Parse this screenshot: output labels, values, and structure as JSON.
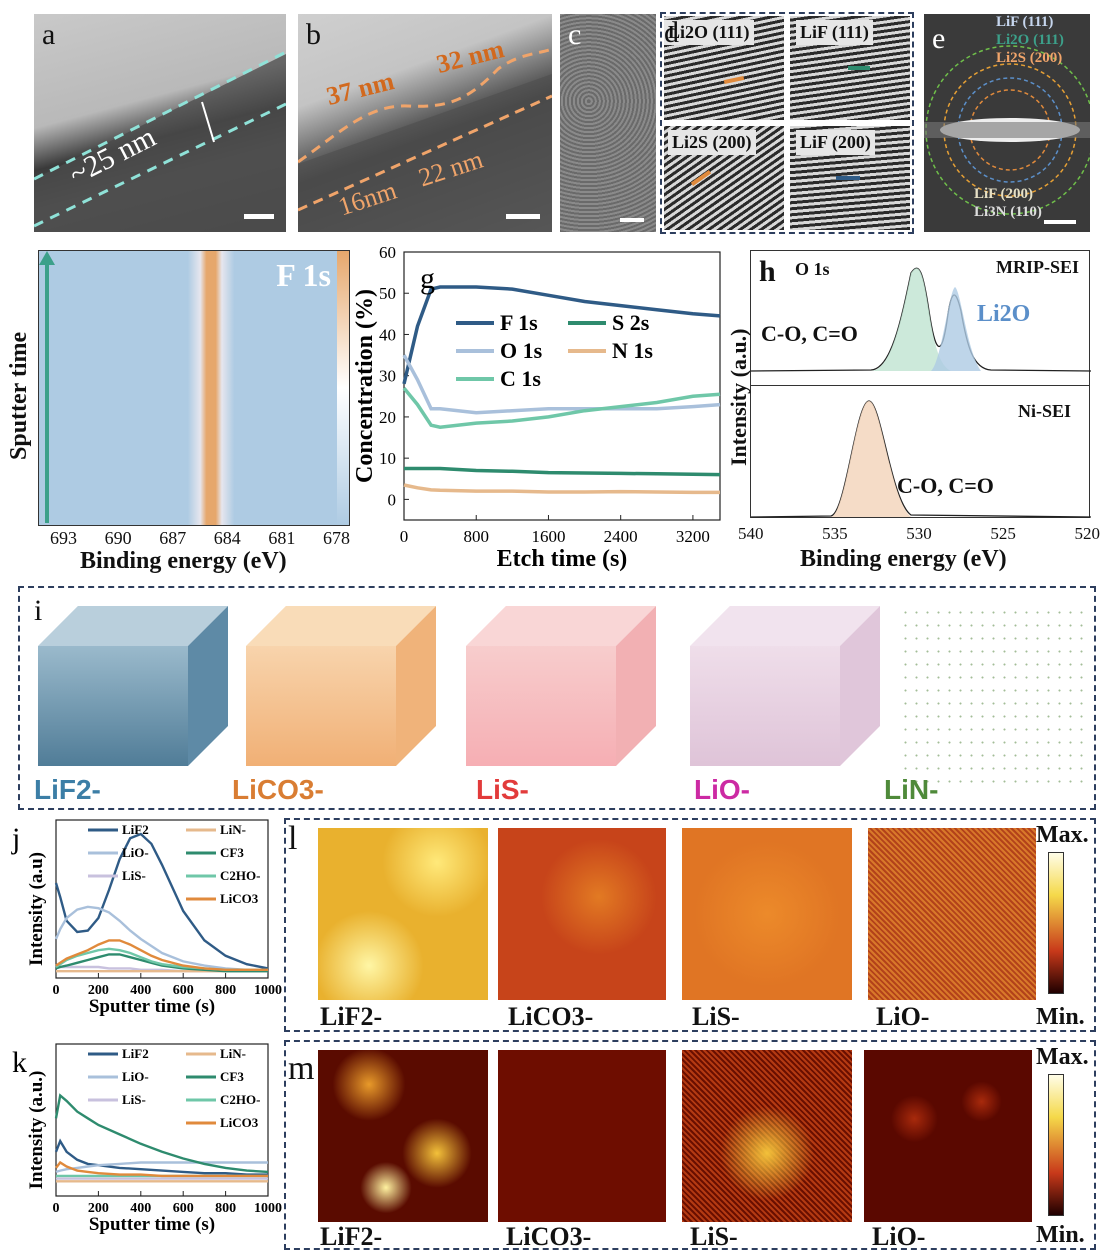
{
  "panels": {
    "a": {
      "label": "a",
      "thickness": "~25 nm"
    },
    "b": {
      "label": "b",
      "m1": "37 nm",
      "m2": "32 nm",
      "m3": "16nm",
      "m4": "22 nm"
    },
    "c": {
      "label": "c"
    },
    "d": {
      "label": "d",
      "tiles": [
        "Li2O (111)",
        "LiF (111)",
        "Li2S (200)",
        "LiF (200)"
      ]
    },
    "e": {
      "label": "e",
      "rings_top": [
        "LiF (111)",
        "Li2O (111)",
        "Li2S (200)"
      ],
      "rings_bottom": [
        "LiF (200)",
        "Li3N (110)"
      ]
    },
    "f": {
      "title": "F 1s",
      "ylabel": "Sputter time",
      "xlabel": "Binding energy (eV)",
      "xticks": [
        "693",
        "690",
        "687",
        "684",
        "681",
        "678"
      ]
    },
    "g": {
      "label": "g",
      "xlabel": "Etch time (s)",
      "ylabel": "Concentration (%)"
    },
    "h": {
      "label": "h",
      "ylabel": "Intensity (a.u.)",
      "xlabel": "Binding energy (eV)",
      "xticks": [
        "540",
        "535",
        "530",
        "525",
        "520"
      ],
      "top_title": "MRIP-SEI",
      "top_sub": "O 1s",
      "top_peak1": "C-O, C=O",
      "top_peak2": "Li2O",
      "bot_title": "Ni-SEI",
      "bot_peak": "C-O, C=O"
    },
    "i": {
      "label": "i",
      "cubes": [
        "LiF2-",
        "LiCO3-",
        "LiS-",
        "LiO-",
        "LiN-"
      ]
    },
    "j": {
      "label": "j",
      "ylabel": "Intensity (a.u)",
      "xlabel": "Sputter time (s)",
      "xticks": [
        "0",
        "200",
        "400",
        "600",
        "800",
        "1000"
      ],
      "legend_left": [
        "LiF2",
        "LiO-",
        "LiS-"
      ],
      "legend_right": [
        "LiN-",
        "CF3",
        "C2HO-",
        "LiCO3"
      ]
    },
    "k": {
      "label": "k",
      "ylabel": "Intensity (a.u.)",
      "xlabel": "Sputter time (s)",
      "xticks": [
        "0",
        "200",
        "400",
        "600",
        "800",
        "1000"
      ],
      "legend_left": [
        "LiF2",
        "LiO-",
        "LiS-"
      ],
      "legend_right": [
        "LiN-",
        "CF3",
        "C2HO-",
        "LiCO3"
      ]
    },
    "l": {
      "label": "l",
      "maps": [
        "LiF2-",
        "LiCO3-",
        "LiS-",
        "LiO-"
      ],
      "max": "Max.",
      "min": "Min."
    },
    "m": {
      "label": "m",
      "maps": [
        "LiF2-",
        "LiCO3-",
        "LiS-",
        "LiO-"
      ],
      "max": "Max.",
      "min": "Min."
    }
  },
  "chart_data": [
    {
      "type": "line",
      "panel": "g",
      "xlabel": "Etch time (s)",
      "ylabel": "Concentration (%)",
      "xlim": [
        0,
        3500
      ],
      "ylim": [
        -5,
        60
      ],
      "xticks": [
        0,
        800,
        1600,
        2400,
        3200
      ],
      "yticks": [
        0,
        10,
        20,
        30,
        40,
        50,
        60
      ],
      "x": [
        0,
        150,
        300,
        400,
        800,
        1200,
        1600,
        2000,
        2400,
        2800,
        3200,
        3500
      ],
      "series": [
        {
          "name": "F 1s",
          "color": "#2f5b86",
          "values": [
            28,
            42,
            51,
            51.5,
            51.5,
            51,
            49.5,
            48,
            47,
            46,
            45,
            44.5
          ]
        },
        {
          "name": "S 2s",
          "color": "#2e8b6e",
          "values": [
            7.5,
            7.5,
            7.5,
            7.5,
            7,
            6.8,
            6.5,
            6.4,
            6.3,
            6.2,
            6.1,
            6
          ]
        },
        {
          "name": "O 1s",
          "color": "#a9c0db",
          "values": [
            35,
            29,
            22,
            22,
            21,
            21.5,
            22,
            22,
            22,
            22,
            22.5,
            23
          ]
        },
        {
          "name": "N 1s",
          "color": "#e6b98c",
          "values": [
            3.5,
            2.8,
            2.3,
            2.2,
            2,
            2,
            1.8,
            1.8,
            1.9,
            1.8,
            1.7,
            1.7
          ]
        },
        {
          "name": "C 1s",
          "color": "#6fc7a8",
          "values": [
            27,
            23,
            18,
            17.5,
            18.5,
            19,
            20,
            21.5,
            22.5,
            23.5,
            25,
            25.5
          ]
        }
      ]
    },
    {
      "type": "line",
      "panel": "j",
      "xlabel": "Sputter time (s)",
      "ylabel": "Intensity (a.u)",
      "xlim": [
        0,
        1000
      ],
      "xticks": [
        0,
        200,
        400,
        600,
        800,
        1000
      ],
      "x": [
        0,
        20,
        50,
        100,
        150,
        200,
        250,
        300,
        350,
        400,
        450,
        500,
        600,
        700,
        800,
        900,
        1000
      ],
      "series": [
        {
          "name": "LiF2",
          "color": "#2f5b86",
          "values": [
            0.65,
            0.55,
            0.38,
            0.3,
            0.31,
            0.4,
            0.6,
            0.82,
            0.97,
            1.0,
            0.93,
            0.78,
            0.45,
            0.24,
            0.13,
            0.07,
            0.04
          ]
        },
        {
          "name": "LiO-",
          "color": "#a9c0db",
          "values": [
            0.25,
            0.32,
            0.4,
            0.46,
            0.48,
            0.47,
            0.44,
            0.38,
            0.31,
            0.25,
            0.2,
            0.15,
            0.09,
            0.06,
            0.04,
            0.03,
            0.02
          ]
        },
        {
          "name": "LiS-",
          "color": "#c8c1de",
          "values": [
            0.05,
            0.05,
            0.05,
            0.05,
            0.05,
            0.05,
            0.04,
            0.04,
            0.04,
            0.03,
            0.03,
            0.03,
            0.02,
            0.02,
            0.02,
            0.02,
            0.02
          ]
        },
        {
          "name": "LiN-",
          "color": "#e6b98c",
          "values": [
            0.02,
            0.02,
            0.02,
            0.02,
            0.02,
            0.02,
            0.02,
            0.02,
            0.02,
            0.02,
            0.02,
            0.02,
            0.02,
            0.02,
            0.02,
            0.02,
            0.02
          ]
        },
        {
          "name": "CF3",
          "color": "#2e8b6e",
          "values": [
            0.04,
            0.05,
            0.06,
            0.08,
            0.1,
            0.12,
            0.14,
            0.14,
            0.12,
            0.1,
            0.08,
            0.06,
            0.04,
            0.03,
            0.02,
            0.02,
            0.02
          ]
        },
        {
          "name": "C2HO-",
          "color": "#6fc7a8",
          "values": [
            0.05,
            0.07,
            0.1,
            0.13,
            0.15,
            0.17,
            0.18,
            0.17,
            0.15,
            0.12,
            0.09,
            0.07,
            0.05,
            0.04,
            0.03,
            0.03,
            0.03
          ]
        },
        {
          "name": "LiCO3",
          "color": "#e08a3c",
          "values": [
            0.06,
            0.08,
            0.11,
            0.14,
            0.17,
            0.21,
            0.24,
            0.24,
            0.21,
            0.17,
            0.13,
            0.1,
            0.06,
            0.04,
            0.03,
            0.03,
            0.03
          ]
        }
      ]
    },
    {
      "type": "line",
      "panel": "k",
      "xlabel": "Sputter time (s)",
      "ylabel": "Intensity (a.u.)",
      "xlim": [
        0,
        1000
      ],
      "xticks": [
        0,
        200,
        400,
        600,
        800,
        1000
      ],
      "x": [
        0,
        20,
        50,
        100,
        150,
        200,
        300,
        400,
        500,
        600,
        700,
        800,
        900,
        1000
      ],
      "series": [
        {
          "name": "LiF2",
          "color": "#2f5b86",
          "values": [
            0.3,
            0.38,
            0.3,
            0.24,
            0.21,
            0.2,
            0.18,
            0.17,
            0.16,
            0.15,
            0.14,
            0.14,
            0.13,
            0.13
          ]
        },
        {
          "name": "LiO-",
          "color": "#a9c0db",
          "values": [
            0.15,
            0.16,
            0.17,
            0.18,
            0.19,
            0.2,
            0.21,
            0.22,
            0.22,
            0.22,
            0.22,
            0.22,
            0.22,
            0.22
          ]
        },
        {
          "name": "LiS-",
          "color": "#c8c1de",
          "values": [
            0.1,
            0.1,
            0.1,
            0.1,
            0.1,
            0.1,
            0.1,
            0.1,
            0.1,
            0.1,
            0.1,
            0.1,
            0.1,
            0.1
          ]
        },
        {
          "name": "LiN-",
          "color": "#e6b98c",
          "values": [
            0.08,
            0.08,
            0.08,
            0.08,
            0.08,
            0.08,
            0.08,
            0.08,
            0.08,
            0.08,
            0.08,
            0.08,
            0.08,
            0.08
          ]
        },
        {
          "name": "CF3",
          "color": "#2e8b6e",
          "values": [
            0.55,
            0.72,
            0.68,
            0.6,
            0.55,
            0.5,
            0.43,
            0.36,
            0.3,
            0.25,
            0.21,
            0.18,
            0.16,
            0.15
          ]
        },
        {
          "name": "C2HO-",
          "color": "#6fc7a8",
          "values": [
            0.12,
            0.12,
            0.12,
            0.12,
            0.12,
            0.12,
            0.12,
            0.12,
            0.12,
            0.12,
            0.12,
            0.12,
            0.12,
            0.12
          ]
        },
        {
          "name": "LiCO3",
          "color": "#e08a3c",
          "values": [
            0.18,
            0.22,
            0.19,
            0.16,
            0.15,
            0.14,
            0.13,
            0.13,
            0.12,
            0.12,
            0.12,
            0.12,
            0.12,
            0.12
          ]
        }
      ]
    }
  ]
}
